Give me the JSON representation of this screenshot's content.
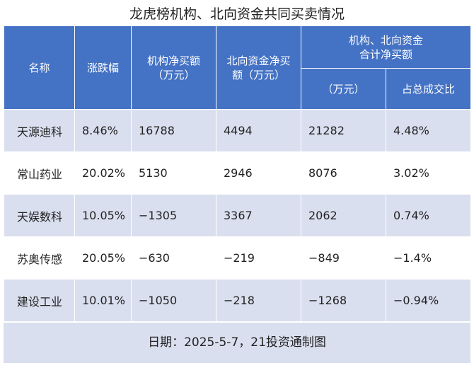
{
  "title": "龙虎榜机构、北向资金共同买卖情况",
  "headers": {
    "name": "名称",
    "change": "涨跌幅",
    "inst_line1": "机构净买额",
    "inst_line2": "（万元）",
    "north_line1": "北向资金净买",
    "north_line2": "额（万元）",
    "combined_line1": "机构、北向资金",
    "combined_line2": "合计净买额",
    "combined_sub_amount": "（万元）",
    "combined_sub_ratio": "占总成交比"
  },
  "rows": [
    {
      "name": "天源迪科",
      "change": "8.46%",
      "inst": "16788",
      "north": "4494",
      "total": "21282",
      "ratio": "4.48%"
    },
    {
      "name": "常山药业",
      "change": "20.02%",
      "inst": "5130",
      "north": "2946",
      "total": "8076",
      "ratio": "3.02%"
    },
    {
      "name": "天娱数科",
      "change": "10.05%",
      "inst": "−1305",
      "north": "3367",
      "total": "2062",
      "ratio": "0.74%"
    },
    {
      "name": "苏奥传感",
      "change": "20.05%",
      "inst": "−630",
      "north": "−219",
      "total": "−849",
      "ratio": "−1.4%"
    },
    {
      "name": "建设工业",
      "change": "10.01%",
      "inst": "−1050",
      "north": "−218",
      "total": "−1268",
      "ratio": "−0.94%"
    }
  ],
  "footer": "日期：2025-5-7，21投资通制图",
  "colors": {
    "header_bg": "#4472c4",
    "stripe_bg": "#dadfef",
    "header_text": "#ffffff"
  }
}
